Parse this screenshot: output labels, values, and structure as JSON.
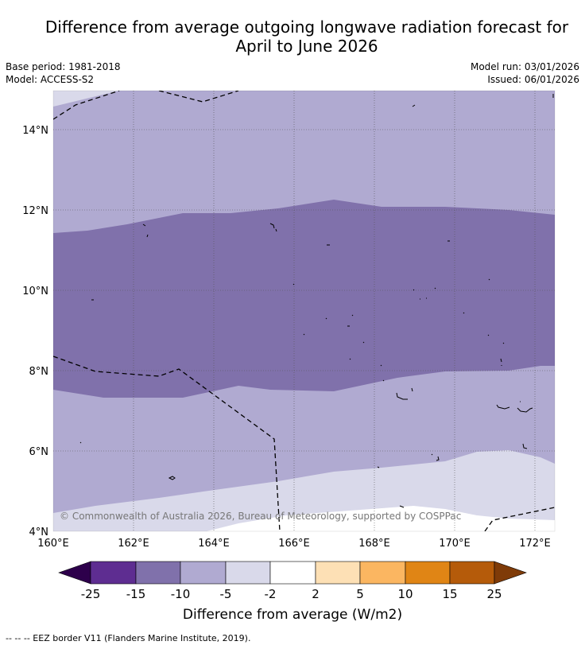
{
  "title": {
    "line1": "Difference from average outgoing longwave radiation forecast for",
    "line2": "April to June 2026"
  },
  "meta": {
    "base_period": "Base period: 1981-2018",
    "model": "Model: ACCESS-S2",
    "model_run": "Model run: 03/01/2026",
    "issued": "Issued: 06/01/2026"
  },
  "map": {
    "lon_ticks": [
      "160°E",
      "162°E",
      "164°E",
      "166°E",
      "168°E",
      "170°E",
      "172°E"
    ],
    "lat_ticks": [
      "4°N",
      "6°N",
      "8°N",
      "10°N",
      "12°N",
      "14°N"
    ],
    "lon_range": [
      160,
      172.5
    ],
    "lat_range": [
      4,
      15.1
    ],
    "copyright": "© Commonwealth of Australia 2026, Bureau of Meteorology, supported by COSPPac"
  },
  "colorbar": {
    "label": "Difference from average (W/m2)",
    "ticks": [
      "-25",
      "-15",
      "-10",
      "-5",
      "-2",
      "2",
      "5",
      "10",
      "15",
      "25"
    ],
    "colors": [
      "#2d004b",
      "#5e2d91",
      "#8071ab",
      "#b0aad1",
      "#d9d9ea",
      "#ffffff",
      "#fde0b5",
      "#fbb661",
      "#e08515",
      "#b55b0a",
      "#7f3b08"
    ]
  },
  "legend": {
    "eez_text": "--  --  -- EEZ border V11 (Flanders Marine Institute, 2019)."
  }
}
